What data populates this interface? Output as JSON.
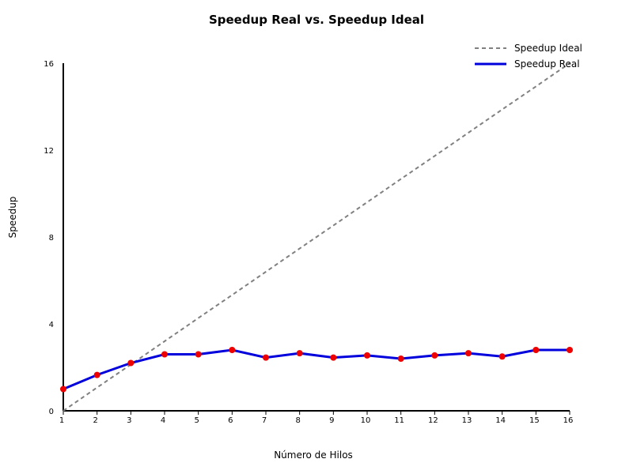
{
  "chart_data": {
    "type": "line",
    "title": "Speedup Real vs. Speedup Ideal",
    "xlabel": "Número de Hilos",
    "ylabel": "Speedup",
    "x": [
      1,
      2,
      3,
      4,
      5,
      6,
      7,
      8,
      9,
      10,
      11,
      12,
      13,
      14,
      15,
      16
    ],
    "xlim": [
      1,
      16
    ],
    "ylim": [
      0,
      16
    ],
    "x_ticks": [
      1,
      2,
      3,
      4,
      5,
      6,
      7,
      8,
      9,
      10,
      11,
      12,
      13,
      14,
      15,
      16
    ],
    "y_ticks": [
      0,
      4,
      8,
      12,
      16
    ],
    "grid": false,
    "legend_position": "top-right",
    "series": [
      {
        "name": "Speedup Ideal",
        "values": [
          0,
          1.07,
          2.13,
          3.2,
          4.27,
          5.33,
          6.4,
          7.47,
          8.53,
          9.6,
          10.67,
          11.73,
          12.8,
          13.87,
          14.93,
          16
        ],
        "color": "#808080",
        "style": "dashed"
      },
      {
        "name": "Speedup Real",
        "values": [
          1.0,
          1.65,
          2.2,
          2.6,
          2.6,
          2.8,
          2.45,
          2.65,
          2.45,
          2.55,
          2.4,
          2.55,
          2.65,
          2.5,
          2.8,
          2.8
        ],
        "color": "#0000dd",
        "marker_color": "#ee0000",
        "style": "solid"
      }
    ]
  }
}
